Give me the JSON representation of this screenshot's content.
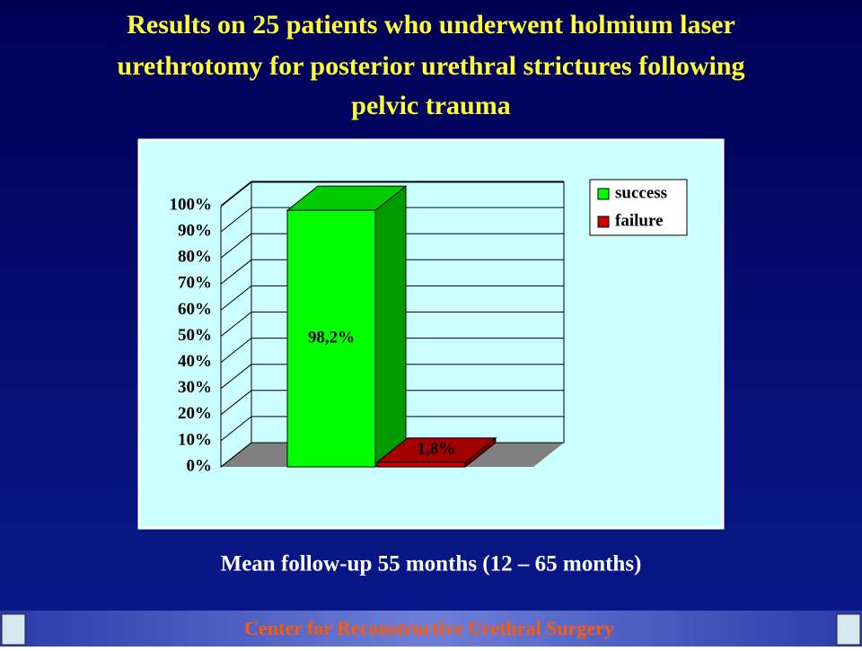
{
  "chart_data": {
    "type": "bar3d",
    "title": "Results on 25 patients who underwent holmium laser urethrotomy for posterior urethral strictures following pelvic trauma",
    "categories": [
      null
    ],
    "series": [
      {
        "name": "success",
        "color": "#00ff00",
        "values": [
          98.2
        ],
        "value_labels": [
          "98,2%"
        ]
      },
      {
        "name": "failure",
        "color": "#cc0000",
        "values": [
          1.8
        ],
        "value_labels": [
          "1,8%"
        ]
      }
    ],
    "ylim": [
      0,
      100
    ],
    "yticks": [
      {
        "value": 0,
        "label": "0%"
      },
      {
        "value": 10,
        "label": "10%"
      },
      {
        "value": 20,
        "label": "20%"
      },
      {
        "value": 30,
        "label": "30%"
      },
      {
        "value": 40,
        "label": "40%"
      },
      {
        "value": 50,
        "label": "50%"
      },
      {
        "value": 60,
        "label": "60%"
      },
      {
        "value": 70,
        "label": "70%"
      },
      {
        "value": 80,
        "label": "80%"
      },
      {
        "value": 90,
        "label": "90%"
      },
      {
        "value": 100,
        "label": "100%"
      }
    ],
    "grid": true,
    "legend": "top-right",
    "note": "Mean follow-up 55 months (12 – 65 months)",
    "footer": "Center for Reconstructive Urethral Surgery"
  }
}
